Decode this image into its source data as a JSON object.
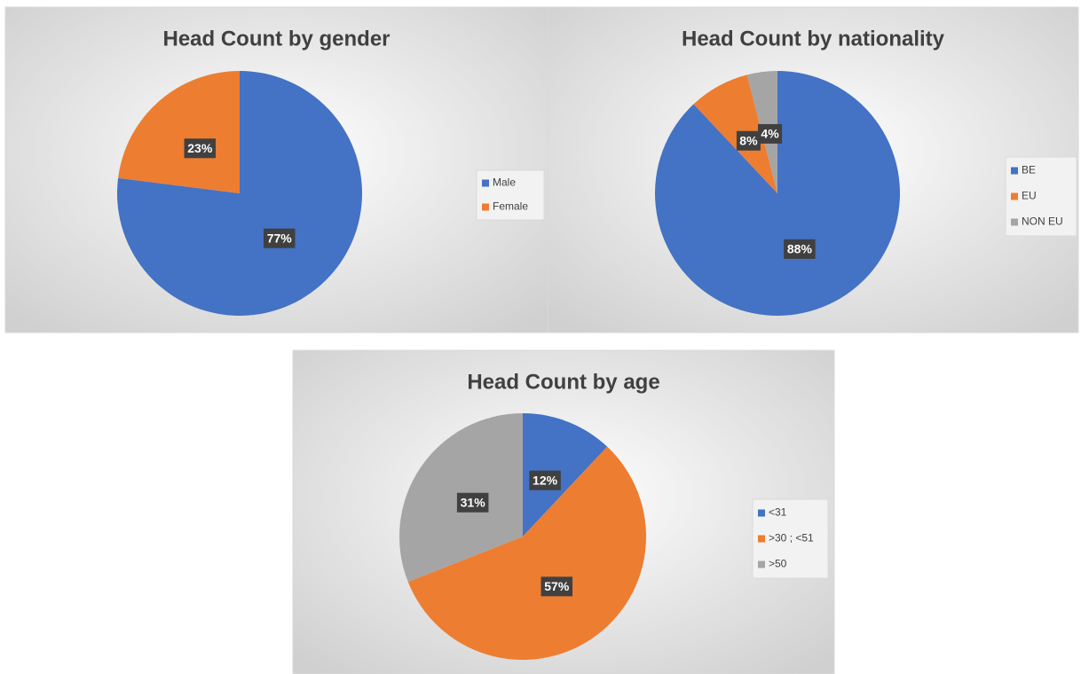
{
  "chart_data": [
    {
      "type": "pie",
      "title": "Head Count by gender",
      "categories": [
        "Male",
        "Female"
      ],
      "values": [
        77,
        23
      ],
      "value_labels": [
        "77%",
        "23%"
      ],
      "colors": [
        "#4472c4",
        "#ed7d31"
      ],
      "legend": "right"
    },
    {
      "type": "pie",
      "title": "Head Count by nationality",
      "categories": [
        "BE",
        "EU",
        "NON EU"
      ],
      "values": [
        88,
        8,
        4
      ],
      "value_labels": [
        "88%",
        "8%",
        "4%"
      ],
      "colors": [
        "#4472c4",
        "#ed7d31",
        "#a5a5a5"
      ],
      "legend": "right"
    },
    {
      "type": "pie",
      "title": "Head Count by age",
      "categories": [
        "<31",
        ">30 ; <51",
        ">50"
      ],
      "values": [
        12,
        57,
        31
      ],
      "value_labels": [
        "12%",
        "57%",
        "31%"
      ],
      "colors": [
        "#4472c4",
        "#ed7d31",
        "#a5a5a5"
      ],
      "legend": "right"
    }
  ]
}
